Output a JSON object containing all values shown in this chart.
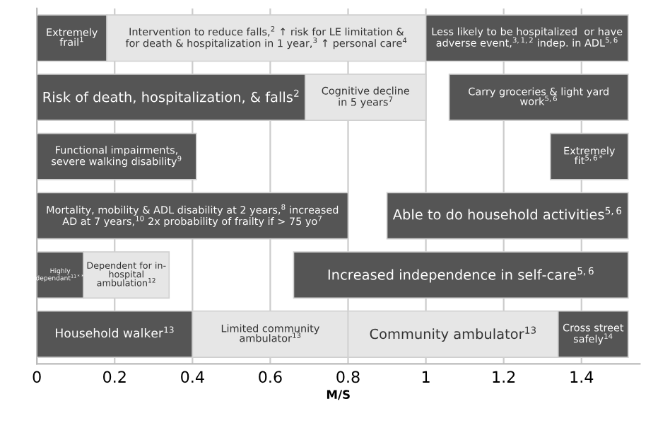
{
  "chart_data": {
    "type": "bar",
    "orientation": "horizontal",
    "xlabel": "M/S",
    "categories": [
      null,
      null,
      null,
      null,
      null,
      null
    ],
    "series": [
      {
        "name": "Extremely\nfrail$^{1}$",
        "color": "#555555",
        "base": [
          0,
          null,
          null,
          null,
          null,
          null
        ],
        "values": [
          0.18,
          null,
          null,
          null,
          null,
          null
        ]
      },
      {
        "name": "Intervention to reduce falls,$^{2}$ ↑ risk for LE limitation &\nfor death & hospitalization in 1 year,$^{3}$ ↑ personal care$^{4}$",
        "color": "#e6e6e6",
        "base": [
          0.18,
          null,
          null,
          null,
          null,
          null
        ],
        "values": [
          0.82,
          null,
          null,
          null,
          null,
          null
        ]
      },
      {
        "name": "Less likely to be hospitalized  or have\nadverse event,$^{3,1,2}$ indep. in ADL$^{5,6}$",
        "color": "#555555",
        "base": [
          1.0,
          null,
          null,
          null,
          null,
          null
        ],
        "values": [
          0.52,
          null,
          null,
          null,
          null,
          null
        ]
      },
      {
        "name": "Risk of death, hospitalization, & falls$^{2}$",
        "color": "#555555",
        "base": [
          null,
          0,
          null,
          null,
          null,
          null
        ],
        "values": [
          null,
          0.69,
          null,
          null,
          null,
          null
        ]
      },
      {
        "name": "Cognitive decline\nin 5 years$^{7}$",
        "color": "#e6e6e6",
        "base": [
          null,
          0.69,
          null,
          null,
          null,
          null
        ],
        "values": [
          null,
          0.31,
          null,
          null,
          null,
          null
        ]
      },
      {
        "name": "Carry groceries & light yard\nwork$^{5,6}$",
        "color": "#555555",
        "base": [
          null,
          1.06,
          null,
          null,
          null,
          null
        ],
        "values": [
          null,
          0.46,
          null,
          null,
          null,
          null
        ]
      },
      {
        "name": "Functional impairments,\nsevere walking disability$^{9}$",
        "color": "#555555",
        "base": [
          null,
          null,
          0,
          null,
          null,
          null
        ],
        "values": [
          null,
          null,
          0.41,
          null,
          null,
          null
        ]
      },
      {
        "name": "Extremely\nfit$^{5,6*}$",
        "color": "#555555",
        "base": [
          null,
          null,
          1.32,
          null,
          null,
          null
        ],
        "values": [
          null,
          null,
          0.2,
          null,
          null,
          null
        ]
      },
      {
        "name": "Mortality, mobility & ADL disability at 2 years,$^{8}$ increased\nAD at 7 years,$^{10}$ 2x probability of frailty if > 75 yo$^{7}$",
        "color": "#555555",
        "base": [
          null,
          null,
          null,
          0,
          null,
          null
        ],
        "values": [
          null,
          null,
          null,
          0.8,
          null,
          null
        ]
      },
      {
        "name": "Able to do household activities$^{5,6}$",
        "color": "#555555",
        "base": [
          null,
          null,
          null,
          0.9,
          null,
          null
        ],
        "values": [
          null,
          null,
          null,
          0.62,
          null,
          null
        ]
      },
      {
        "name": "Highly\ndependant$^{11**}$",
        "color": "#555555",
        "base": [
          null,
          null,
          null,
          null,
          0,
          null
        ],
        "values": [
          null,
          null,
          null,
          null,
          0.12,
          null
        ]
      },
      {
        "name": "Dependent for in-\nhospital\nambulation$^{12}$",
        "color": "#e6e6e6",
        "base": [
          null,
          null,
          null,
          null,
          0.12,
          null
        ],
        "values": [
          null,
          null,
          null,
          null,
          0.22,
          null
        ]
      },
      {
        "name": "Increased independence in self-care$^{5,6}$",
        "color": "#555555",
        "base": [
          null,
          null,
          null,
          null,
          0.66,
          null
        ],
        "values": [
          null,
          null,
          null,
          null,
          0.86,
          null
        ]
      },
      {
        "name": "Household walker$^{13}$",
        "color": "#555555",
        "base": [
          null,
          null,
          null,
          null,
          null,
          0
        ],
        "values": [
          null,
          null,
          null,
          null,
          null,
          0.4
        ]
      },
      {
        "name": "Limited community\nambulator$^{13}$",
        "color": "#e6e6e6",
        "base": [
          null,
          null,
          null,
          null,
          null,
          0.4
        ],
        "values": [
          null,
          null,
          null,
          null,
          null,
          0.4
        ]
      },
      {
        "name": "Community ambulator$^{13}$",
        "color": "#e6e6e6",
        "base": [
          null,
          null,
          null,
          null,
          null,
          0.8
        ],
        "values": [
          null,
          null,
          null,
          null,
          null,
          0.54
        ]
      },
      {
        "name": "Cross street\nsafely$^{14}$",
        "color": "#555555",
        "base": [
          null,
          null,
          null,
          null,
          null,
          1.34
        ],
        "values": [
          null,
          null,
          null,
          null,
          null,
          0.18
        ]
      }
    ],
    "xlim": [
      0,
      1.55
    ],
    "xticks": [
      0,
      0.2,
      0.4,
      0.6,
      0.8,
      {
        "value": 1,
        "label": "1"
      },
      1.2,
      1.4
    ],
    "grid": "x",
    "tick_labels": "x"
  }
}
